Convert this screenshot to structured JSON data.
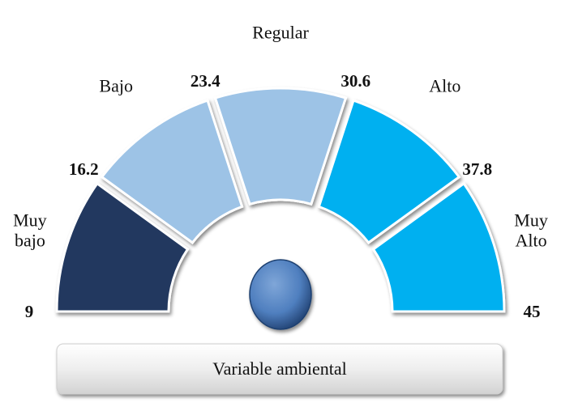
{
  "chart_data": {
    "type": "gauge",
    "title": "Variable ambiental",
    "categories": [
      "Muy bajo",
      "Bajo",
      "Regular",
      "Alto",
      "Muy Alto"
    ],
    "colors": [
      "#22375f",
      "#9dc3e6",
      "#9dc3e6",
      "#00b0f0",
      "#00b0f0"
    ],
    "ticks": [
      9,
      16.2,
      23.4,
      30.6,
      37.8,
      45
    ],
    "ylim": [
      9,
      45
    ]
  }
}
